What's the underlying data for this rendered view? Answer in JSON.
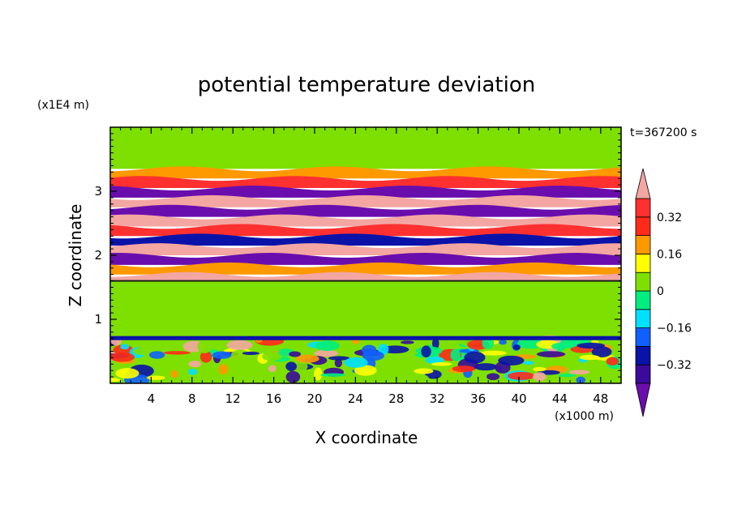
{
  "chart_data": {
    "type": "heatmap",
    "title": "potential temperature deviation",
    "xlabel": "X coordinate",
    "ylabel": "Z coordinate",
    "x_unit": "(x1000 m)",
    "y_unit": "(x1E4 m)",
    "time_label": "t=367200 s",
    "xlim": [
      0,
      50
    ],
    "ylim": [
      0,
      4
    ],
    "x_ticks": [
      4,
      8,
      12,
      16,
      20,
      24,
      28,
      32,
      36,
      40,
      44,
      48
    ],
    "y_ticks": [
      1,
      2,
      3
    ],
    "x_tick_labels": [
      "4",
      "8",
      "12",
      "16",
      "20",
      "24",
      "28",
      "32",
      "36",
      "40",
      "44",
      "48"
    ],
    "y_tick_labels": [
      "1",
      "2",
      "3"
    ],
    "colorbar": {
      "levels": [
        -0.4,
        -0.32,
        -0.24,
        -0.16,
        -0.08,
        0,
        0.08,
        0.16,
        0.24,
        0.32,
        0.4
      ],
      "tick_values": [
        0.32,
        0.16,
        0,
        -0.16,
        -0.32
      ],
      "tick_labels": [
        "0.32",
        "0.16",
        "0",
        "−0.16",
        "−0.32"
      ],
      "colors_low_to_high": [
        "#6a0dad",
        "#3a0a9a",
        "#0a12a8",
        "#1060ff",
        "#00e0ff",
        "#00ee80",
        "#7ee000",
        "#ffff00",
        "#ff9900",
        "#ff2a1a",
        "#ff3030",
        "#f4a6a2"
      ],
      "extend": "both"
    },
    "bands": [
      {
        "z_bottom": 3.35,
        "z_top": 4.0,
        "value": 0.0
      },
      {
        "z_bottom": 3.2,
        "z_top": 3.35,
        "value": 0.16
      },
      {
        "z_bottom": 3.05,
        "z_top": 3.2,
        "value": 0.32
      },
      {
        "z_bottom": 2.9,
        "z_top": 3.05,
        "value": -0.42
      },
      {
        "z_bottom": 2.75,
        "z_top": 2.9,
        "value": 0.42
      },
      {
        "z_bottom": 2.6,
        "z_top": 2.75,
        "value": -0.42
      },
      {
        "z_bottom": 2.45,
        "z_top": 2.6,
        "value": 0.42
      },
      {
        "z_bottom": 2.3,
        "z_top": 2.45,
        "value": 0.32
      },
      {
        "z_bottom": 2.15,
        "z_top": 2.3,
        "value": -0.32
      },
      {
        "z_bottom": 2.0,
        "z_top": 2.15,
        "value": 0.42
      },
      {
        "z_bottom": 1.85,
        "z_top": 2.0,
        "value": -0.42
      },
      {
        "z_bottom": 1.7,
        "z_top": 1.85,
        "value": 0.16
      },
      {
        "z_bottom": 1.6,
        "z_top": 1.7,
        "value": 0.42
      },
      {
        "z_bottom": 0.7,
        "z_top": 1.6,
        "value": 0.04
      },
      {
        "z_bottom": 0.0,
        "z_top": 0.7,
        "value": 0.0
      }
    ]
  }
}
